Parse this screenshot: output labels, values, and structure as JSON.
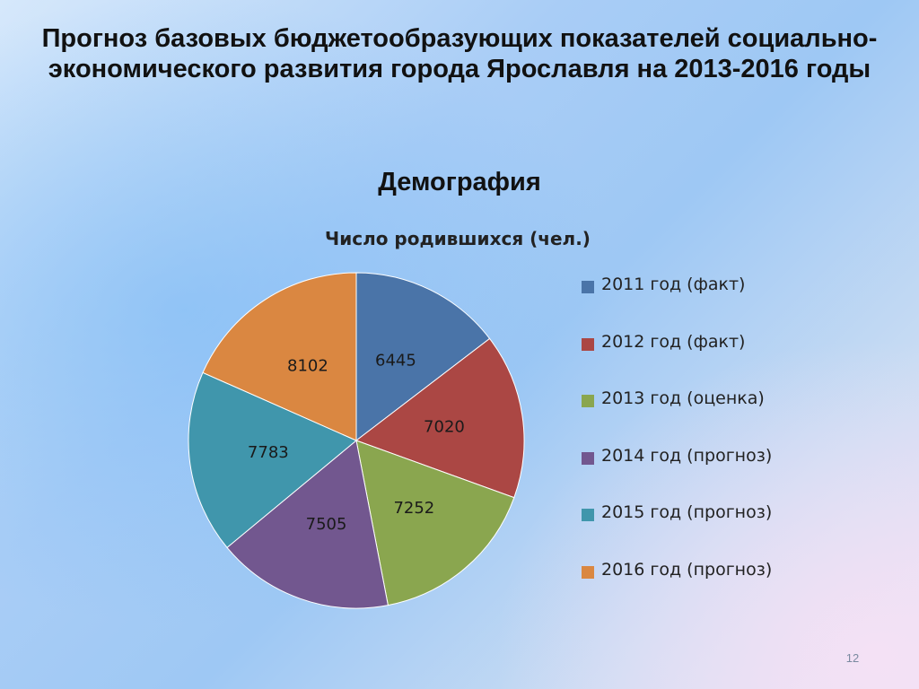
{
  "slide": {
    "title": "Прогноз базовых бюджетообразующих показателей социально-экономического развития города Ярославля на 2013-2016 годы",
    "subtitle": "Демография",
    "page_number": "12"
  },
  "chart_data": {
    "type": "pie",
    "title": "Число родившихся (чел.)",
    "categories": [
      "2011 год (факт)",
      "2012 год (факт)",
      "2013 год (оценка)",
      "2014 год (прогноз)",
      "2015 год (прогноз)",
      "2016 год (прогноз)"
    ],
    "values": [
      6445,
      7020,
      7252,
      7505,
      7783,
      8102
    ],
    "colors": [
      "#4a74a8",
      "#ab4744",
      "#8aa64f",
      "#72578f",
      "#4096ac",
      "#da8741"
    ],
    "legend_position": "right",
    "data_labels": true
  }
}
